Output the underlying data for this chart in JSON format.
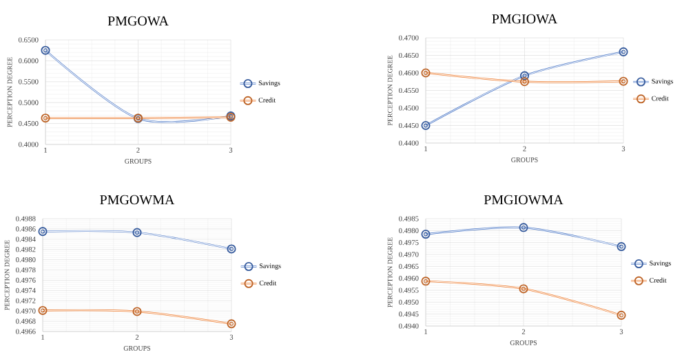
{
  "chart_data": [
    {
      "type": "line",
      "title": "PMGOWA",
      "xlabel": "GROUPS",
      "ylabel": "PERCEPTION DEGREE",
      "x": [
        1,
        2,
        3
      ],
      "xlim": [
        1,
        3
      ],
      "xticks": [
        1,
        2,
        3
      ],
      "ylim": [
        0.4,
        0.65
      ],
      "yticks": [
        {
          "value": 0.4,
          "label": "0.4000"
        },
        {
          "value": 0.45,
          "label": "0.4500"
        },
        {
          "value": 0.5,
          "label": "0.5000"
        },
        {
          "value": 0.55,
          "label": "0.5500"
        },
        {
          "value": 0.6,
          "label": "0.6000"
        },
        {
          "value": 0.65,
          "label": "0.6500"
        }
      ],
      "series": [
        {
          "name": "Savings",
          "color": "#4472c4",
          "values": [
            0.625,
            0.462,
            0.468
          ]
        },
        {
          "name": "Credit",
          "color": "#ed7d31",
          "values": [
            0.463,
            0.463,
            0.465
          ]
        }
      ],
      "grid": true,
      "legend": "right",
      "marker": "circle"
    },
    {
      "type": "line",
      "title": "PMGIOWA",
      "xlabel": "GROUPS",
      "ylabel": "PERCEPTION DEGREE",
      "x": [
        1,
        2,
        3
      ],
      "xlim": [
        1,
        3
      ],
      "xticks": [
        1,
        2,
        3
      ],
      "ylim": [
        0.44,
        0.47
      ],
      "yticks": [
        {
          "value": 0.44,
          "label": "0.4400"
        },
        {
          "value": 0.445,
          "label": "0.4450"
        },
        {
          "value": 0.45,
          "label": "0.4500"
        },
        {
          "value": 0.455,
          "label": "0.4550"
        },
        {
          "value": 0.46,
          "label": "0.4600"
        },
        {
          "value": 0.465,
          "label": "0.4650"
        },
        {
          "value": 0.47,
          "label": "0.4700"
        }
      ],
      "series": [
        {
          "name": "Savings",
          "color": "#4472c4",
          "values": [
            0.445,
            0.4592,
            0.466
          ]
        },
        {
          "name": "Credit",
          "color": "#ed7d31",
          "values": [
            0.46,
            0.4575,
            0.4576
          ]
        }
      ],
      "grid": true,
      "legend": "right",
      "marker": "circle"
    },
    {
      "type": "line",
      "title": "PMGOWMA",
      "xlabel": "GROUPS",
      "ylabel": "PERCEPTION DEGREE",
      "x": [
        1,
        2,
        3
      ],
      "xlim": [
        1,
        3
      ],
      "xticks": [
        1,
        2,
        3
      ],
      "ylim": [
        0.4966,
        0.4988
      ],
      "yticks": [
        {
          "value": 0.4966,
          "label": "0.4966"
        },
        {
          "value": 0.4968,
          "label": "0.4968"
        },
        {
          "value": 0.497,
          "label": "0.4970"
        },
        {
          "value": 0.4972,
          "label": "0.4972"
        },
        {
          "value": 0.4974,
          "label": "0.4974"
        },
        {
          "value": 0.4976,
          "label": "0.4976"
        },
        {
          "value": 0.4978,
          "label": "0.4978"
        },
        {
          "value": 0.498,
          "label": "0.4980"
        },
        {
          "value": 0.4982,
          "label": "0.4982"
        },
        {
          "value": 0.4984,
          "label": "0.4984"
        },
        {
          "value": 0.4986,
          "label": "0.4986"
        },
        {
          "value": 0.4988,
          "label": "0.4988"
        }
      ],
      "series": [
        {
          "name": "Savings",
          "color": "#4472c4",
          "values": [
            0.49855,
            0.49853,
            0.49821
          ]
        },
        {
          "name": "Credit",
          "color": "#ed7d31",
          "values": [
            0.49701,
            0.49699,
            0.49675
          ]
        }
      ],
      "grid": true,
      "legend": "right",
      "marker": "circle"
    },
    {
      "type": "line",
      "title": "PMGIOWMA",
      "xlabel": "GROUPS",
      "ylabel": "PERCEPTION DEGREE",
      "x": [
        1,
        2,
        3
      ],
      "xlim": [
        1,
        3
      ],
      "xticks": [
        1,
        2,
        3
      ],
      "ylim": [
        0.494,
        0.4985
      ],
      "yticks": [
        {
          "value": 0.494,
          "label": "0.4940"
        },
        {
          "value": 0.4945,
          "label": "0.4945"
        },
        {
          "value": 0.495,
          "label": "0.4950"
        },
        {
          "value": 0.4955,
          "label": "0.4955"
        },
        {
          "value": 0.496,
          "label": "0.4960"
        },
        {
          "value": 0.4965,
          "label": "0.4965"
        },
        {
          "value": 0.497,
          "label": "0.4970"
        },
        {
          "value": 0.4975,
          "label": "0.4975"
        },
        {
          "value": 0.498,
          "label": "0.4980"
        },
        {
          "value": 0.4985,
          "label": "0.4985"
        }
      ],
      "series": [
        {
          "name": "Savings",
          "color": "#4472c4",
          "values": [
            0.49785,
            0.49813,
            0.49733
          ]
        },
        {
          "name": "Credit",
          "color": "#ed7d31",
          "values": [
            0.49588,
            0.49556,
            0.49445
          ]
        }
      ],
      "grid": true,
      "legend": "right",
      "marker": "circle"
    }
  ]
}
